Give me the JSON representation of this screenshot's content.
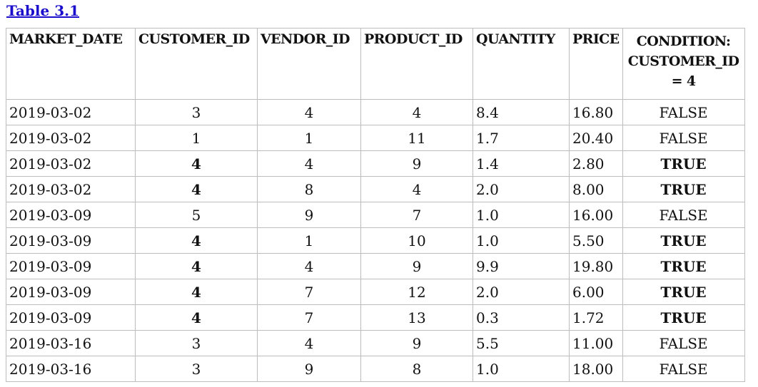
{
  "caption": "Table 3.1",
  "headers": {
    "market_date": "MARKET_DATE",
    "customer_id": "CUSTOMER_ID",
    "vendor_id": "VENDOR_ID",
    "product_id": "PRODUCT_ID",
    "quantity": "QUANTITY",
    "price": "PRICE",
    "condition": "CONDITION: CUSTOMER_ID = 4"
  },
  "rows": [
    {
      "market_date": "2019-03-02",
      "customer_id": "3",
      "vendor_id": "4",
      "product_id": "4",
      "quantity": "8.4",
      "price": "16.80",
      "condition": "FALSE",
      "match": false
    },
    {
      "market_date": "2019-03-02",
      "customer_id": "1",
      "vendor_id": "1",
      "product_id": "11",
      "quantity": "1.7",
      "price": "20.40",
      "condition": "FALSE",
      "match": false
    },
    {
      "market_date": "2019-03-02",
      "customer_id": "4",
      "vendor_id": "4",
      "product_id": "9",
      "quantity": "1.4",
      "price": "2.80",
      "condition": "TRUE",
      "match": true
    },
    {
      "market_date": "2019-03-02",
      "customer_id": "4",
      "vendor_id": "8",
      "product_id": "4",
      "quantity": "2.0",
      "price": "8.00",
      "condition": "TRUE",
      "match": true
    },
    {
      "market_date": "2019-03-09",
      "customer_id": "5",
      "vendor_id": "9",
      "product_id": "7",
      "quantity": "1.0",
      "price": "16.00",
      "condition": "FALSE",
      "match": false
    },
    {
      "market_date": "2019-03-09",
      "customer_id": "4",
      "vendor_id": "1",
      "product_id": "10",
      "quantity": "1.0",
      "price": "5.50",
      "condition": "TRUE",
      "match": true
    },
    {
      "market_date": "2019-03-09",
      "customer_id": "4",
      "vendor_id": "4",
      "product_id": "9",
      "quantity": "9.9",
      "price": "19.80",
      "condition": "TRUE",
      "match": true
    },
    {
      "market_date": "2019-03-09",
      "customer_id": "4",
      "vendor_id": "7",
      "product_id": "12",
      "quantity": "2.0",
      "price": "6.00",
      "condition": "TRUE",
      "match": true
    },
    {
      "market_date": "2019-03-09",
      "customer_id": "4",
      "vendor_id": "7",
      "product_id": "13",
      "quantity": "0.3",
      "price": "1.72",
      "condition": "TRUE",
      "match": true
    },
    {
      "market_date": "2019-03-16",
      "customer_id": "3",
      "vendor_id": "4",
      "product_id": "9",
      "quantity": "5.5",
      "price": "11.00",
      "condition": "FALSE",
      "match": false
    },
    {
      "market_date": "2019-03-16",
      "customer_id": "3",
      "vendor_id": "9",
      "product_id": "8",
      "quantity": "1.0",
      "price": "18.00",
      "condition": "FALSE",
      "match": false
    }
  ]
}
